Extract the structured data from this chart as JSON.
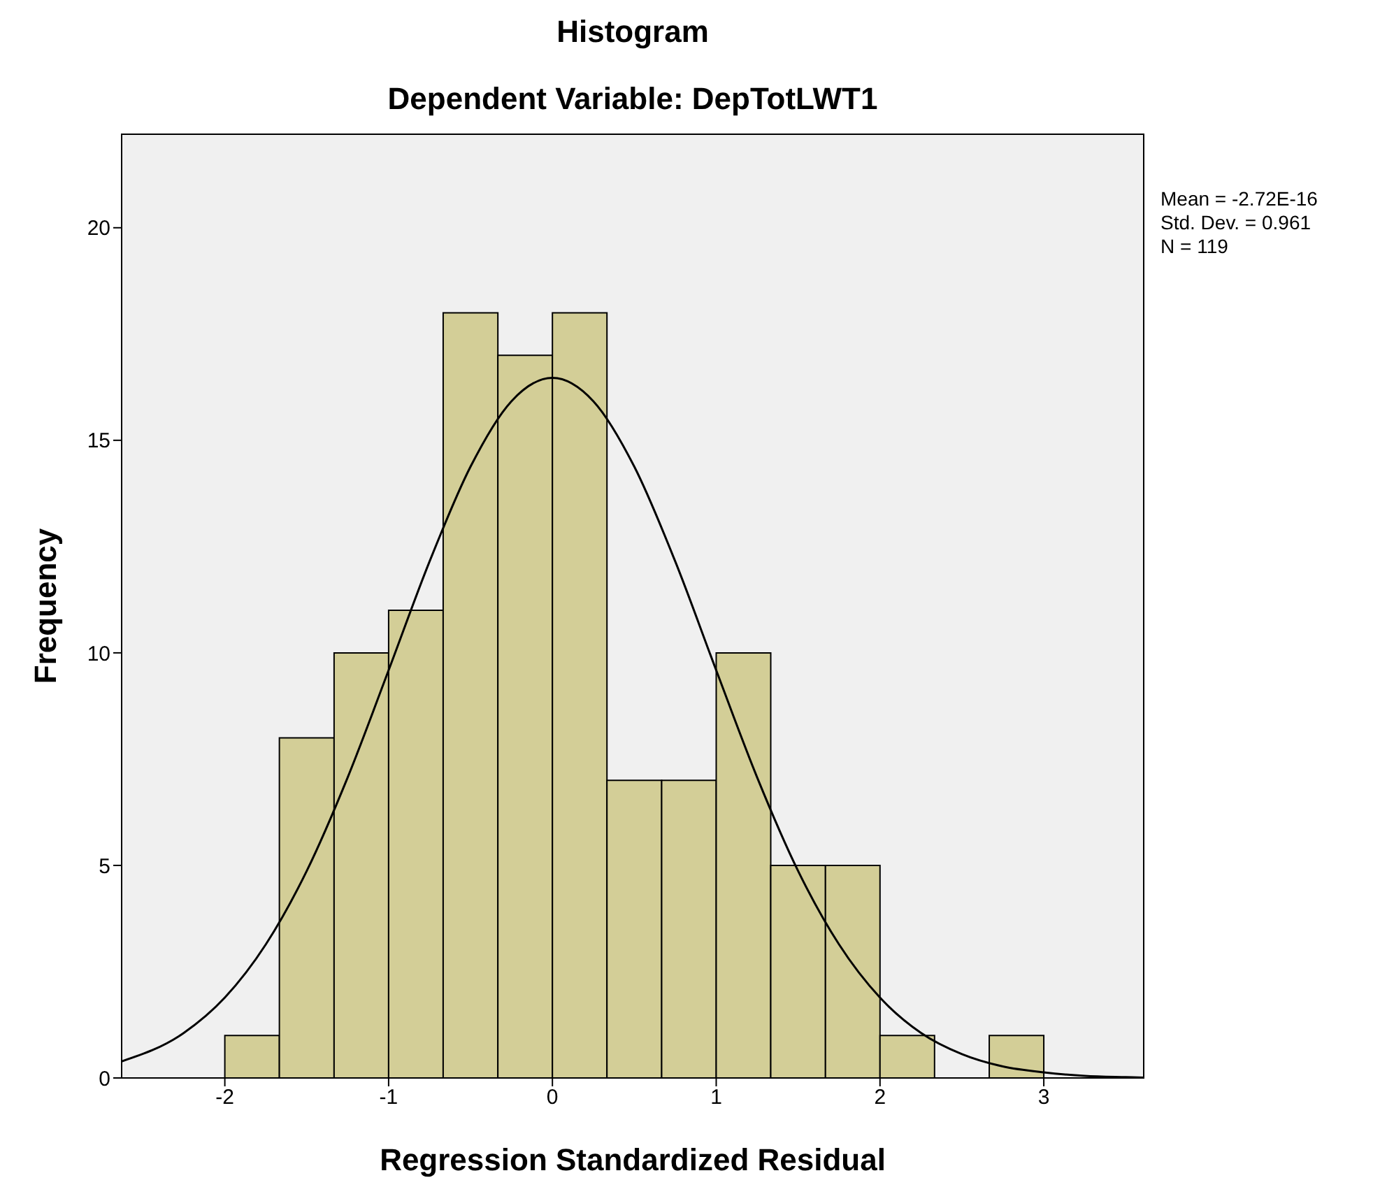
{
  "chart_data": {
    "type": "histogram",
    "title": "Histogram",
    "subtitle": "Dependent Variable: DepTotLWT1",
    "xlabel": "Regression Standardized Residual",
    "ylabel": "Frequency",
    "bins": [
      -2,
      -1.667,
      -1.333,
      -1,
      -0.667,
      -0.333,
      0,
      0.333,
      0.667,
      1,
      1.333,
      1.667,
      2,
      2.333,
      2.667,
      3
    ],
    "values": [
      1,
      8,
      10,
      11,
      18,
      17,
      18,
      7,
      7,
      10,
      5,
      5,
      1,
      0,
      1
    ],
    "color": "#d3ce97",
    "series": [
      {
        "type": "line",
        "color": "#000000",
        "x": [
          -2.63,
          -2.25,
          -2,
          -1.75,
          -1.5,
          -1.25,
          -1,
          -0.75,
          -0.5,
          -0.25,
          0,
          0.25,
          0.5,
          0.75,
          1,
          1.25,
          1.5,
          1.75,
          2,
          2.25,
          2.5,
          2.75,
          3,
          3.25,
          3.5,
          3.61
        ],
        "values": [
          0.39,
          1.06,
          1.89,
          3.14,
          4.87,
          7.07,
          9.59,
          12.15,
          14.38,
          15.92,
          16.47,
          15.92,
          14.38,
          12.15,
          9.59,
          7.07,
          4.87,
          3.14,
          1.89,
          1.06,
          0.56,
          0.27,
          0.13,
          0.05,
          0.02,
          0.01
        ]
      }
    ],
    "xlim": [
      -2.63,
      3.61
    ],
    "xticks": [
      -2,
      -1,
      0,
      1,
      2,
      3
    ],
    "ylim": [
      0,
      22.2
    ],
    "yticks": [
      0,
      5,
      10,
      15,
      20
    ],
    "annotations": [
      "Mean = -2.72E-16",
      "Std. Dev. = 0.961",
      "N = 119"
    ]
  }
}
